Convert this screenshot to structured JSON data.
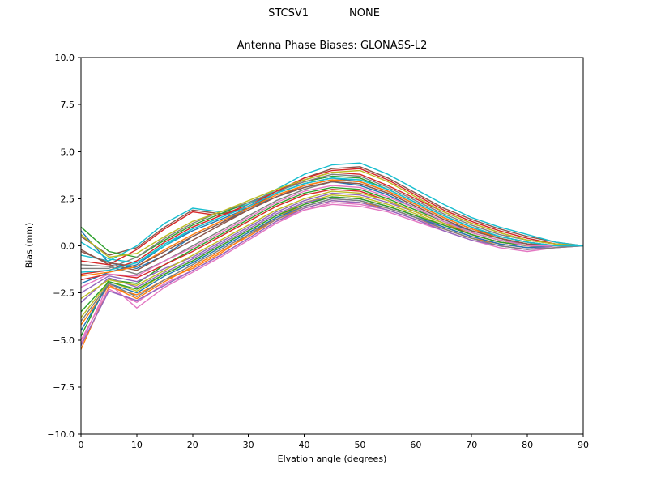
{
  "figure": {
    "suptitle_left": "STCSV1",
    "suptitle_right": "NONE",
    "title": "Antenna Phase Biases: GLONASS-L2",
    "xlabel": "Elvation angle (degrees)",
    "ylabel": "Bias (mm)"
  },
  "chart_data": {
    "type": "line",
    "suptitle": "STCSV1          NONE",
    "title": "Antenna Phase Biases: GLONASS-L2",
    "xlabel": "Elvation angle (degrees)",
    "ylabel": "Bias (mm)",
    "xlim": [
      0,
      90
    ],
    "ylim": [
      -10,
      10
    ],
    "xticks": [
      0,
      10,
      20,
      30,
      40,
      50,
      60,
      70,
      80,
      90
    ],
    "yticks": [
      10.0,
      7.5,
      5.0,
      2.5,
      0.0,
      -2.5,
      -5.0,
      -7.5,
      -10.0
    ],
    "ytick_labels": [
      "10.0",
      "7.5",
      "5.0",
      "2.5",
      "0.0",
      "−2.5",
      "−5.0",
      "−7.5",
      "−10.0"
    ],
    "grid": false,
    "legend": "none",
    "line_width": 1.4,
    "palette": [
      "#1f77b4",
      "#ff7f0e",
      "#2ca02c",
      "#d62728",
      "#9467bd",
      "#8c564b",
      "#e377c2",
      "#7f7f7f",
      "#bcbd22",
      "#17becf"
    ],
    "x": [
      0,
      5,
      10,
      15,
      20,
      25,
      30,
      35,
      40,
      45,
      50,
      55,
      60,
      65,
      70,
      75,
      80,
      85,
      90
    ],
    "series": [
      {
        "name": "line-01",
        "values": [
          0.8,
          -0.9,
          -1.2,
          -0.5,
          0.5,
          1.2,
          2.0,
          2.8,
          3.3,
          3.6,
          3.4,
          2.9,
          2.2,
          1.5,
          0.9,
          0.4,
          0.1,
          0.0,
          0.0
        ]
      },
      {
        "name": "line-02",
        "values": [
          -5.5,
          -2.2,
          -2.6,
          -1.8,
          -1.2,
          -0.4,
          0.6,
          1.5,
          2.2,
          2.6,
          2.5,
          2.1,
          1.6,
          1.0,
          0.5,
          0.1,
          -0.1,
          0.0,
          0.0
        ]
      },
      {
        "name": "line-03",
        "values": [
          -4.8,
          -1.8,
          -2.0,
          -1.0,
          -0.2,
          0.6,
          1.4,
          2.2,
          2.8,
          3.1,
          3.0,
          2.5,
          1.9,
          1.3,
          0.7,
          0.3,
          0.0,
          0.0,
          0.0
        ]
      },
      {
        "name": "line-04",
        "values": [
          -1.5,
          -1.3,
          -0.8,
          0.2,
          1.0,
          1.6,
          2.2,
          2.9,
          3.5,
          3.9,
          3.8,
          3.2,
          2.5,
          1.8,
          1.2,
          0.7,
          0.3,
          0.1,
          0.0
        ]
      },
      {
        "name": "line-05",
        "values": [
          -2.5,
          -1.6,
          -1.9,
          -1.2,
          -0.6,
          0.2,
          1.0,
          1.8,
          2.4,
          2.8,
          2.7,
          2.3,
          1.8,
          1.2,
          0.7,
          0.3,
          0.1,
          0.0,
          0.0
        ]
      },
      {
        "name": "line-06",
        "values": [
          0.5,
          -0.5,
          -0.1,
          1.0,
          1.9,
          1.7,
          2.0,
          2.8,
          3.6,
          4.1,
          4.2,
          3.6,
          2.8,
          2.0,
          1.4,
          0.9,
          0.5,
          0.2,
          0.0
        ]
      },
      {
        "name": "line-07",
        "values": [
          -5.2,
          -2.0,
          -3.3,
          -2.2,
          -1.4,
          -0.6,
          0.3,
          1.2,
          1.9,
          2.3,
          2.2,
          1.9,
          1.4,
          0.9,
          0.4,
          0.0,
          -0.2,
          -0.1,
          0.0
        ]
      },
      {
        "name": "line-08",
        "values": [
          -1.0,
          -1.1,
          -1.5,
          -0.8,
          0.0,
          0.8,
          1.6,
          2.4,
          3.0,
          3.4,
          3.3,
          2.8,
          2.1,
          1.4,
          0.8,
          0.4,
          0.1,
          0.0,
          0.0
        ]
      },
      {
        "name": "line-09",
        "values": [
          -3.8,
          -1.9,
          -2.4,
          -1.5,
          -0.8,
          0.0,
          0.8,
          1.6,
          2.3,
          2.7,
          2.6,
          2.2,
          1.7,
          1.1,
          0.6,
          0.2,
          0.0,
          0.0,
          0.0
        ]
      },
      {
        "name": "line-10",
        "values": [
          -0.5,
          -0.8,
          0.0,
          1.2,
          2.0,
          1.8,
          2.2,
          3.0,
          3.8,
          4.3,
          4.4,
          3.8,
          3.0,
          2.2,
          1.5,
          1.0,
          0.6,
          0.2,
          0.0
        ]
      },
      {
        "name": "line-11",
        "values": [
          -2.0,
          -1.4,
          -1.0,
          0.0,
          0.8,
          1.4,
          2.0,
          2.6,
          3.1,
          3.4,
          3.2,
          2.7,
          2.0,
          1.3,
          0.8,
          0.4,
          0.1,
          0.0,
          0.0
        ]
      },
      {
        "name": "line-12",
        "values": [
          -4.2,
          -2.1,
          -2.8,
          -1.9,
          -1.1,
          -0.3,
          0.5,
          1.4,
          2.0,
          2.4,
          2.3,
          2.0,
          1.5,
          0.9,
          0.4,
          0.1,
          -0.1,
          0.0,
          0.0
        ]
      },
      {
        "name": "line-13",
        "values": [
          1.0,
          -0.3,
          -0.6,
          0.3,
          1.1,
          1.7,
          2.3,
          2.9,
          3.4,
          3.7,
          3.6,
          3.0,
          2.3,
          1.6,
          1.0,
          0.5,
          0.2,
          0.0,
          0.0
        ]
      },
      {
        "name": "line-14",
        "values": [
          -1.8,
          -1.5,
          -1.7,
          -1.0,
          -0.3,
          0.5,
          1.3,
          2.1,
          2.7,
          3.0,
          2.9,
          2.4,
          1.8,
          1.2,
          0.6,
          0.2,
          0.0,
          0.0,
          0.0
        ]
      },
      {
        "name": "line-15",
        "values": [
          -3.0,
          -1.7,
          -2.2,
          -1.4,
          -0.7,
          0.1,
          0.9,
          1.7,
          2.3,
          2.6,
          2.5,
          2.1,
          1.6,
          1.0,
          0.5,
          0.1,
          -0.1,
          0.0,
          0.0
        ]
      },
      {
        "name": "line-16",
        "values": [
          -0.2,
          -1.0,
          -1.3,
          -0.5,
          0.3,
          1.1,
          1.9,
          2.6,
          3.2,
          3.5,
          3.4,
          2.9,
          2.2,
          1.5,
          0.9,
          0.5,
          0.2,
          0.0,
          0.0
        ]
      },
      {
        "name": "line-17",
        "values": [
          -5.0,
          -2.3,
          -3.0,
          -2.0,
          -1.3,
          -0.5,
          0.4,
          1.3,
          1.9,
          2.2,
          2.1,
          1.8,
          1.3,
          0.8,
          0.3,
          -0.1,
          -0.3,
          -0.1,
          0.0
        ]
      },
      {
        "name": "line-18",
        "values": [
          -1.2,
          -1.2,
          -0.6,
          0.4,
          1.2,
          1.8,
          2.3,
          2.9,
          3.4,
          3.8,
          3.7,
          3.1,
          2.4,
          1.7,
          1.1,
          0.6,
          0.3,
          0.1,
          0.0
        ]
      },
      {
        "name": "line-19",
        "values": [
          -2.8,
          -1.8,
          -2.1,
          -1.3,
          -0.5,
          0.3,
          1.1,
          1.9,
          2.5,
          2.9,
          2.8,
          2.4,
          1.8,
          1.2,
          0.7,
          0.3,
          0.0,
          0.0,
          0.0
        ]
      },
      {
        "name": "line-20",
        "values": [
          0.2,
          -0.7,
          -0.9,
          0.0,
          0.9,
          1.5,
          2.1,
          2.8,
          3.3,
          3.6,
          3.5,
          3.0,
          2.3,
          1.6,
          1.0,
          0.5,
          0.2,
          0.0,
          0.0
        ]
      },
      {
        "name": "line-21",
        "values": [
          -4.5,
          -2.0,
          -2.5,
          -1.6,
          -0.9,
          -0.1,
          0.7,
          1.5,
          2.1,
          2.5,
          2.4,
          2.0,
          1.5,
          1.0,
          0.5,
          0.1,
          -0.1,
          0.0,
          0.0
        ]
      },
      {
        "name": "line-22",
        "values": [
          -1.6,
          -1.4,
          -1.1,
          -0.2,
          0.6,
          1.3,
          2.0,
          2.7,
          3.2,
          3.5,
          3.4,
          2.9,
          2.2,
          1.5,
          0.9,
          0.4,
          0.1,
          0.0,
          0.0
        ]
      },
      {
        "name": "line-23",
        "values": [
          -3.5,
          -1.9,
          -2.3,
          -1.5,
          -0.8,
          0.0,
          0.8,
          1.6,
          2.2,
          2.6,
          2.5,
          2.1,
          1.6,
          1.1,
          0.6,
          0.2,
          0.0,
          0.0,
          0.0
        ]
      },
      {
        "name": "line-24",
        "values": [
          -0.8,
          -1.0,
          -0.2,
          0.9,
          1.8,
          1.6,
          2.1,
          2.9,
          3.6,
          4.0,
          4.1,
          3.5,
          2.7,
          1.9,
          1.3,
          0.8,
          0.4,
          0.1,
          0.0
        ]
      },
      {
        "name": "line-25",
        "values": [
          -5.3,
          -2.4,
          -2.9,
          -2.1,
          -1.3,
          -0.5,
          0.4,
          1.3,
          2.0,
          2.4,
          2.3,
          1.9,
          1.4,
          0.8,
          0.3,
          0.0,
          -0.2,
          0.0,
          0.0
        ]
      },
      {
        "name": "line-26",
        "values": [
          -0.3,
          -0.9,
          -1.1,
          -0.3,
          0.5,
          1.2,
          1.9,
          2.6,
          3.1,
          3.4,
          3.3,
          2.8,
          2.1,
          1.4,
          0.8,
          0.4,
          0.1,
          0.0,
          0.0
        ]
      },
      {
        "name": "line-27",
        "values": [
          -2.2,
          -1.5,
          -1.6,
          -0.8,
          -0.1,
          0.7,
          1.5,
          2.3,
          2.9,
          3.2,
          3.1,
          2.6,
          2.0,
          1.3,
          0.7,
          0.3,
          0.0,
          0.0,
          0.0
        ]
      },
      {
        "name": "line-28",
        "values": [
          -4.0,
          -2.0,
          -2.7,
          -1.8,
          -1.0,
          -0.2,
          0.6,
          1.4,
          2.1,
          2.5,
          2.4,
          2.0,
          1.5,
          0.9,
          0.4,
          0.0,
          -0.2,
          -0.1,
          0.0
        ]
      },
      {
        "name": "line-29",
        "values": [
          0.6,
          -0.6,
          -0.4,
          0.5,
          1.3,
          1.8,
          2.4,
          3.0,
          3.5,
          3.9,
          4.0,
          3.4,
          2.6,
          1.8,
          1.2,
          0.7,
          0.3,
          0.1,
          0.0
        ]
      },
      {
        "name": "line-30",
        "values": [
          -1.4,
          -1.3,
          -0.9,
          0.1,
          0.9,
          1.5,
          2.1,
          2.8,
          3.3,
          3.6,
          3.5,
          3.0,
          2.3,
          1.6,
          1.0,
          0.5,
          0.2,
          0.0,
          0.0
        ]
      }
    ]
  }
}
